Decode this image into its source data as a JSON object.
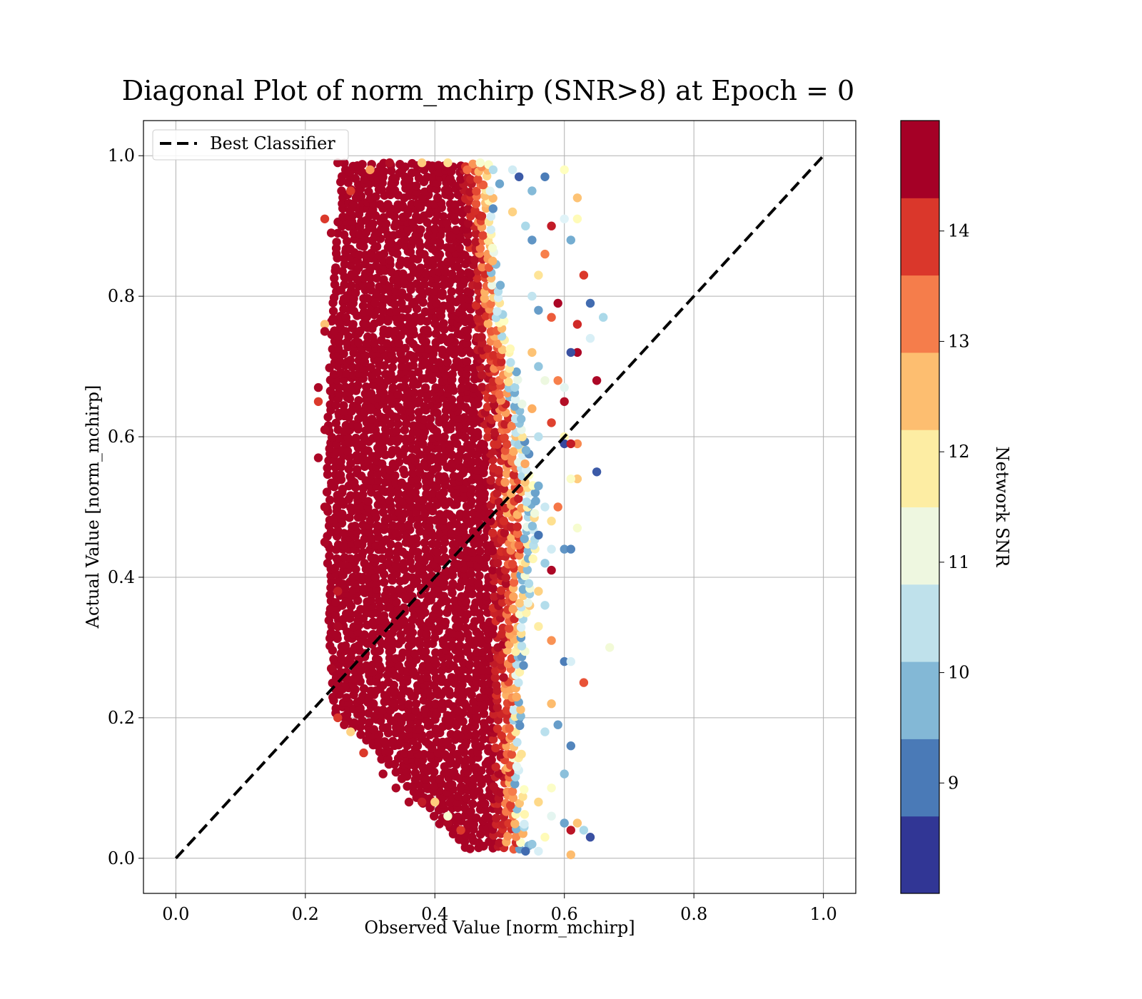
{
  "chart_data": {
    "type": "scatter",
    "title": "Diagonal Plot of norm_mchirp (SNR>8) at Epoch = 0",
    "xlabel": "Observed Value [norm_mchirp]",
    "ylabel": "Actual Value [norm_mchirp]",
    "xlim": [
      -0.05,
      1.05
    ],
    "ylim": [
      -0.05,
      1.05
    ],
    "xticks": [
      "0.0",
      "0.2",
      "0.4",
      "0.6",
      "0.8",
      "1.0"
    ],
    "yticks": [
      "0.0",
      "0.2",
      "0.4",
      "0.6",
      "0.8",
      "1.0"
    ],
    "grid": true,
    "legend": {
      "placement": "top-left",
      "entries": [
        "Best Classifier"
      ]
    },
    "reference_line": {
      "name": "Best Classifier",
      "style": "dashed",
      "color": "#000000",
      "x": [
        0.0,
        1.0
      ],
      "y": [
        0.0,
        1.0
      ]
    },
    "colorbar": {
      "label": "Network SNR",
      "range": [
        8.0,
        15.0
      ],
      "ticks": [
        "9",
        "10",
        "11",
        "12",
        "13",
        "14"
      ],
      "tick_values": [
        9,
        10,
        11,
        12,
        13,
        14
      ],
      "colors": [
        "#313695",
        "#4575b4",
        "#74add1",
        "#abd9e9",
        "#e0f3f8",
        "#ffffbf",
        "#fee090",
        "#fdae61",
        "#f46d43",
        "#d73027",
        "#a50026"
      ],
      "band_colors": [
        "#313695",
        "#4a7ab7",
        "#83b8d6",
        "#bfe1eb",
        "#eef7e0",
        "#fdeda3",
        "#fdbe70",
        "#f57d4b",
        "#da372b",
        "#a50026"
      ]
    },
    "series": [
      {
        "color_by": "Network SNR",
        "points": [
          [
            0.25,
            0.99,
            14.9
          ],
          [
            0.27,
            0.95,
            14.2
          ],
          [
            0.3,
            0.98,
            13.1
          ],
          [
            0.33,
            0.99,
            14.8
          ],
          [
            0.38,
            0.99,
            12.5
          ],
          [
            0.42,
            0.99,
            12.2
          ],
          [
            0.45,
            0.98,
            13.6
          ],
          [
            0.47,
            0.99,
            11.3
          ],
          [
            0.49,
            0.98,
            10.2
          ],
          [
            0.5,
            0.96,
            9.3
          ],
          [
            0.52,
            0.98,
            10.6
          ],
          [
            0.53,
            0.97,
            8.4
          ],
          [
            0.55,
            0.95,
            9.6
          ],
          [
            0.57,
            0.97,
            8.8
          ],
          [
            0.6,
            0.98,
            11.5
          ],
          [
            0.52,
            0.92,
            12.4
          ],
          [
            0.54,
            0.9,
            10.1
          ],
          [
            0.55,
            0.88,
            9.1
          ],
          [
            0.57,
            0.86,
            13.4
          ],
          [
            0.58,
            0.9,
            14.6
          ],
          [
            0.6,
            0.91,
            10.8
          ],
          [
            0.62,
            0.94,
            12.6
          ],
          [
            0.62,
            0.91,
            11.6
          ],
          [
            0.61,
            0.88,
            9.4
          ],
          [
            0.63,
            0.83,
            14.2
          ],
          [
            0.56,
            0.83,
            12.1
          ],
          [
            0.55,
            0.8,
            10.4
          ],
          [
            0.56,
            0.78,
            9.2
          ],
          [
            0.58,
            0.77,
            13.8
          ],
          [
            0.59,
            0.79,
            14.9
          ],
          [
            0.62,
            0.76,
            14.4
          ],
          [
            0.64,
            0.79,
            8.6
          ],
          [
            0.66,
            0.77,
            10.1
          ],
          [
            0.64,
            0.74,
            10.7
          ],
          [
            0.62,
            0.72,
            14.9
          ],
          [
            0.55,
            0.72,
            12.6
          ],
          [
            0.56,
            0.7,
            9.8
          ],
          [
            0.57,
            0.68,
            11.1
          ],
          [
            0.59,
            0.68,
            13.4
          ],
          [
            0.6,
            0.65,
            14.8
          ],
          [
            0.61,
            0.72,
            8.3
          ],
          [
            0.65,
            0.68,
            14.9
          ],
          [
            0.6,
            0.67,
            10.9
          ],
          [
            0.55,
            0.64,
            12.9
          ],
          [
            0.58,
            0.62,
            14.1
          ],
          [
            0.56,
            0.6,
            10.3
          ],
          [
            0.6,
            0.6,
            11.7
          ],
          [
            0.6,
            0.59,
            8.2
          ],
          [
            0.62,
            0.59,
            13.3
          ],
          [
            0.61,
            0.59,
            14.6
          ],
          [
            0.65,
            0.55,
            8.4
          ],
          [
            0.62,
            0.54,
            12.5
          ],
          [
            0.61,
            0.54,
            11.4
          ],
          [
            0.56,
            0.53,
            9.4
          ],
          [
            0.57,
            0.5,
            10.5
          ],
          [
            0.58,
            0.48,
            12.2
          ],
          [
            0.59,
            0.5,
            13.5
          ],
          [
            0.56,
            0.46,
            8.7
          ],
          [
            0.58,
            0.44,
            10.6
          ],
          [
            0.6,
            0.44,
            9.1
          ],
          [
            0.61,
            0.44,
            8.9
          ],
          [
            0.62,
            0.47,
            11.3
          ],
          [
            0.57,
            0.42,
            9.9
          ],
          [
            0.58,
            0.41,
            14.9
          ],
          [
            0.56,
            0.38,
            12.4
          ],
          [
            0.57,
            0.36,
            10.2
          ],
          [
            0.56,
            0.33,
            11.9
          ],
          [
            0.58,
            0.31,
            13.2
          ],
          [
            0.6,
            0.28,
            8.8
          ],
          [
            0.61,
            0.28,
            10.7
          ],
          [
            0.67,
            0.3,
            11.2
          ],
          [
            0.63,
            0.25,
            13.9
          ],
          [
            0.58,
            0.22,
            12.7
          ],
          [
            0.57,
            0.18,
            10.3
          ],
          [
            0.59,
            0.19,
            9.2
          ],
          [
            0.61,
            0.16,
            8.9
          ],
          [
            0.6,
            0.12,
            9.7
          ],
          [
            0.58,
            0.1,
            11.4
          ],
          [
            0.56,
            0.08,
            12.3
          ],
          [
            0.58,
            0.06,
            10.9
          ],
          [
            0.6,
            0.05,
            9.3
          ],
          [
            0.62,
            0.05,
            12.6
          ],
          [
            0.61,
            0.04,
            14.7
          ],
          [
            0.63,
            0.04,
            10.1
          ],
          [
            0.64,
            0.03,
            8.3
          ],
          [
            0.57,
            0.03,
            11.6
          ],
          [
            0.55,
            0.02,
            9.8
          ],
          [
            0.54,
            0.01,
            8.6
          ],
          [
            0.61,
            0.005,
            12.7
          ],
          [
            0.56,
            0.01,
            10.7
          ],
          [
            0.23,
            0.91,
            14.2
          ],
          [
            0.24,
            0.89,
            14.9
          ],
          [
            0.23,
            0.76,
            12.6
          ],
          [
            0.23,
            0.75,
            14.9
          ],
          [
            0.22,
            0.67,
            14.9
          ],
          [
            0.22,
            0.65,
            14.2
          ],
          [
            0.23,
            0.61,
            14.9
          ],
          [
            0.22,
            0.57,
            14.9
          ],
          [
            0.23,
            0.5,
            14.9
          ],
          [
            0.23,
            0.45,
            14.9
          ],
          [
            0.25,
            0.38,
            14.6
          ],
          [
            0.25,
            0.33,
            14.9
          ],
          [
            0.24,
            0.27,
            14.9
          ],
          [
            0.25,
            0.2,
            14.2
          ],
          [
            0.26,
            0.19,
            14.9
          ],
          [
            0.27,
            0.18,
            12.4
          ],
          [
            0.29,
            0.15,
            14.2
          ],
          [
            0.32,
            0.12,
            14.9
          ],
          [
            0.34,
            0.1,
            14.9
          ],
          [
            0.36,
            0.08,
            14.9
          ],
          [
            0.38,
            0.08,
            14.6
          ],
          [
            0.4,
            0.08,
            12.5
          ],
          [
            0.42,
            0.05,
            14.9
          ],
          [
            0.42,
            0.06,
            11.3
          ],
          [
            0.44,
            0.04,
            14.2
          ]
        ]
      }
    ]
  }
}
